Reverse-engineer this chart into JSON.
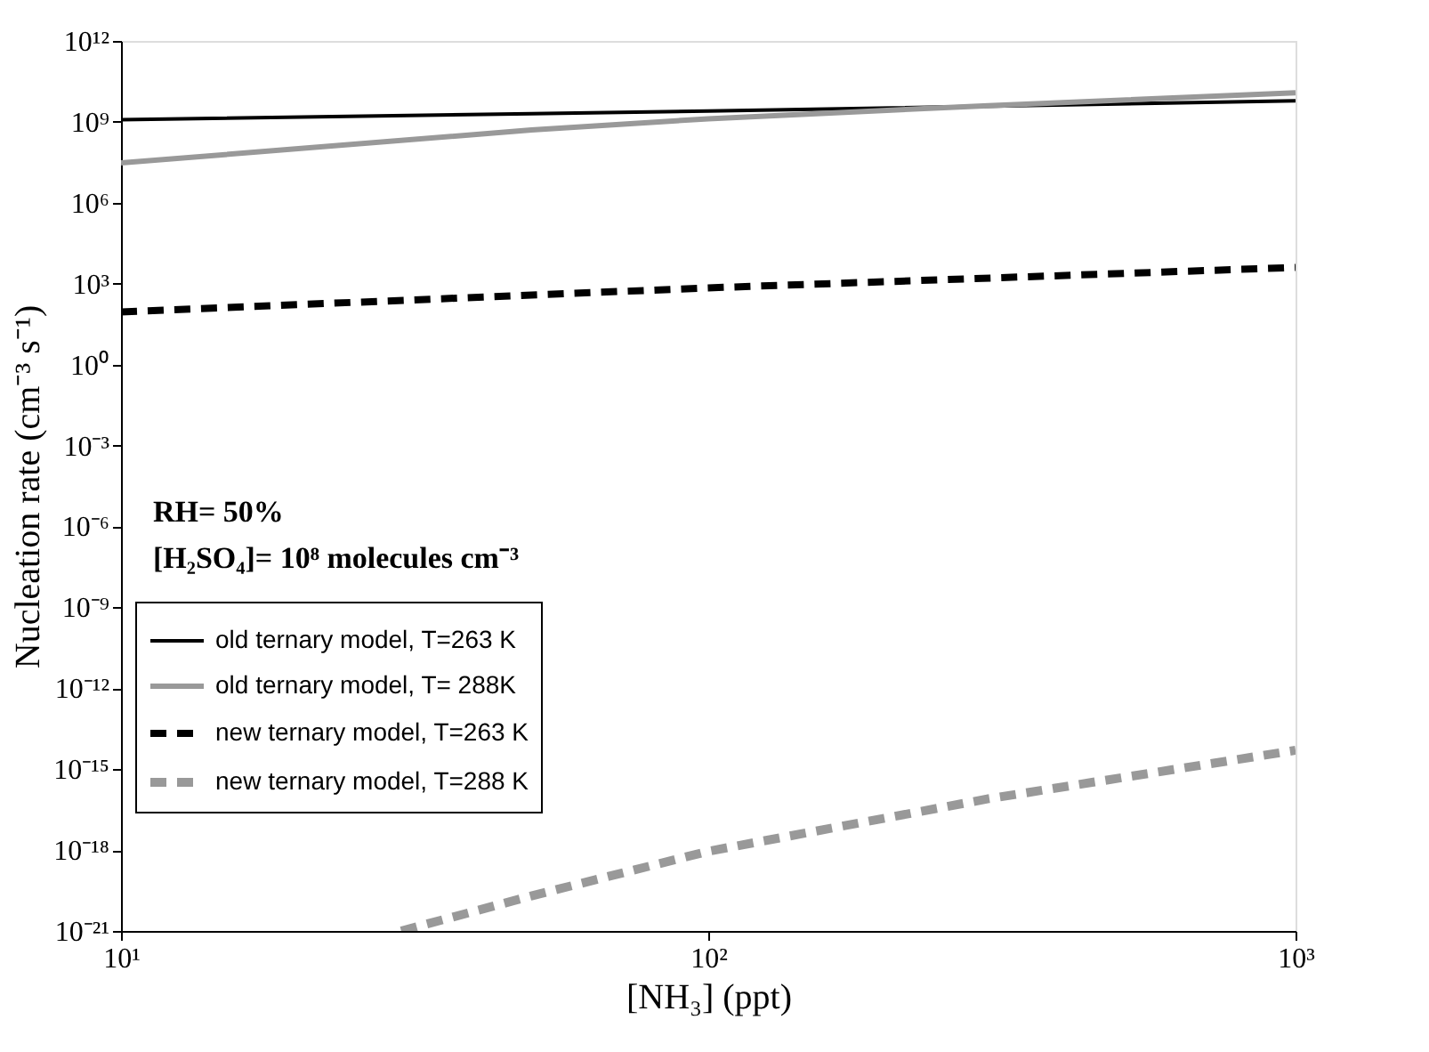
{
  "chart_data": {
    "type": "line",
    "xlabel": "[NH₃] (ppt)",
    "ylabel": "Nucleation rate (cm⁻³ s⁻¹)",
    "log": "xy",
    "xlim": [
      10,
      1000
    ],
    "ylim": [
      1e-21,
      1000000000000.0
    ],
    "xticks": [
      {
        "value": 10,
        "label": "10¹"
      },
      {
        "value": 100,
        "label": "10²"
      },
      {
        "value": 1000,
        "label": "10³"
      }
    ],
    "yticks": [
      {
        "value": 1e-21,
        "label": "10⁻²¹"
      },
      {
        "value": 1e-18,
        "label": "10⁻¹⁸"
      },
      {
        "value": 1e-15,
        "label": "10⁻¹⁵"
      },
      {
        "value": 1e-12,
        "label": "10⁻¹²"
      },
      {
        "value": 1e-09,
        "label": "10⁻⁹"
      },
      {
        "value": 1e-06,
        "label": "10⁻⁶"
      },
      {
        "value": 0.001,
        "label": "10⁻³"
      },
      {
        "value": 1,
        "label": "10⁰"
      },
      {
        "value": 1000,
        "label": "10³"
      },
      {
        "value": 1000000.0,
        "label": "10⁶"
      },
      {
        "value": 1000000000.0,
        "label": "10⁹"
      },
      {
        "value": 1000000000000.0,
        "label": "10¹²"
      }
    ],
    "grid": false,
    "legend": "bottom left",
    "marker": "none",
    "annotations": [
      "RH= 50%",
      "[H₂SO₄]= 10⁸ molecules cm⁻³"
    ],
    "series": [
      {
        "name": "old ternary model, T=263 K",
        "color": "#000000",
        "line_style": "solid",
        "x": [
          10,
          50,
          100,
          1000
        ],
        "values": [
          1200000000.0,
          2000000000.0,
          2500000000.0,
          6000000000.0
        ]
      },
      {
        "name": "old ternary model, T= 288K",
        "color": "#999999",
        "line_style": "solid",
        "x": [
          10,
          50,
          100,
          300,
          1000
        ],
        "values": [
          30000000.0,
          500000000.0,
          1300000000.0,
          4000000000.0,
          12000000000.0
        ]
      },
      {
        "name": "new ternary model, T=263 K",
        "color": "#000000",
        "line_style": "dashed",
        "x": [
          10,
          100,
          1000
        ],
        "values": [
          90,
          700,
          4000
        ]
      },
      {
        "name": "new ternary model, T=288 K",
        "color": "#999999",
        "line_style": "dashed",
        "x": [
          30,
          50,
          100,
          300,
          1000
        ],
        "values": [
          1e-21,
          2e-20,
          9e-19,
          8e-17,
          5e-15
        ]
      }
    ]
  }
}
